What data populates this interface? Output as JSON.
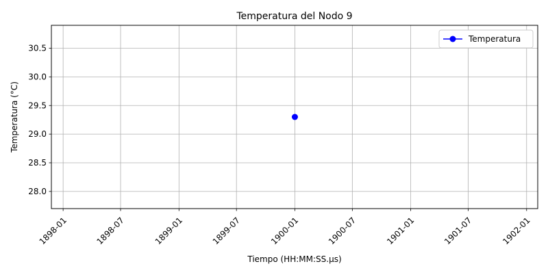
{
  "chart_data": {
    "type": "line",
    "title": "Temperatura del Nodo 9",
    "xlabel": "Tiempo (HH:MM:SS.µs)",
    "ylabel": "Temperatura (°C)",
    "x_scale": "date",
    "xlim": [
      "1897-11-25",
      "1902-02-05"
    ],
    "ylim": [
      27.7,
      30.9
    ],
    "x_ticks": [
      {
        "date": "1898-01-01",
        "label": "1898-01"
      },
      {
        "date": "1898-07-01",
        "label": "1898-07"
      },
      {
        "date": "1899-01-01",
        "label": "1899-01"
      },
      {
        "date": "1899-07-01",
        "label": "1899-07"
      },
      {
        "date": "1900-01-01",
        "label": "1900-01"
      },
      {
        "date": "1900-07-01",
        "label": "1900-07"
      },
      {
        "date": "1901-01-01",
        "label": "1901-01"
      },
      {
        "date": "1901-07-01",
        "label": "1901-07"
      },
      {
        "date": "1902-01-01",
        "label": "1902-01"
      }
    ],
    "y_ticks": [
      {
        "value": 28.0,
        "label": "28.0"
      },
      {
        "value": 28.5,
        "label": "28.5"
      },
      {
        "value": 29.0,
        "label": "29.0"
      },
      {
        "value": 29.5,
        "label": "29.5"
      },
      {
        "value": 30.0,
        "label": "30.0"
      },
      {
        "value": 30.5,
        "label": "30.5"
      }
    ],
    "grid": true,
    "legend_position": "top-right",
    "series": [
      {
        "name": "Temperatura",
        "color": "#0000ff",
        "marker": "circle",
        "points": [
          {
            "x": "1900-01-01",
            "y": 29.3
          }
        ]
      }
    ]
  }
}
